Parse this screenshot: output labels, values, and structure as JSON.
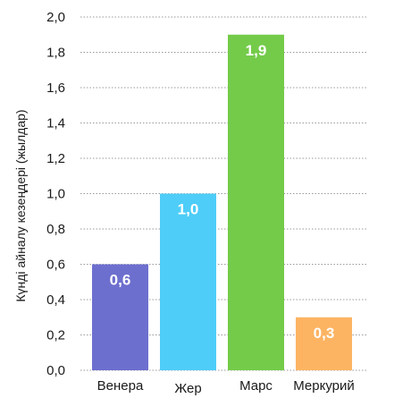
{
  "chart_data": {
    "type": "bar",
    "categories": [
      "Венера",
      "Жер",
      "Марс",
      "Меркурий"
    ],
    "values": [
      0.6,
      1.0,
      1.9,
      0.3
    ],
    "data_labels": [
      "0,6",
      "1,0",
      "1,9",
      "0,3"
    ],
    "colors": [
      "#6d6fcf",
      "#4ecdf8",
      "#74cb4a",
      "#fdb462"
    ],
    "title": "",
    "xlabel": "",
    "ylabel": "Күнді айналу кезеңдері (жылдар)",
    "ylim": [
      0,
      2.0
    ],
    "yticks": [
      "0,0",
      "0,2",
      "0,4",
      "0,6",
      "0,8",
      "1,0",
      "1,2",
      "1,4",
      "1,6",
      "1,8",
      "2,0"
    ],
    "grid": true,
    "legend": "none"
  }
}
